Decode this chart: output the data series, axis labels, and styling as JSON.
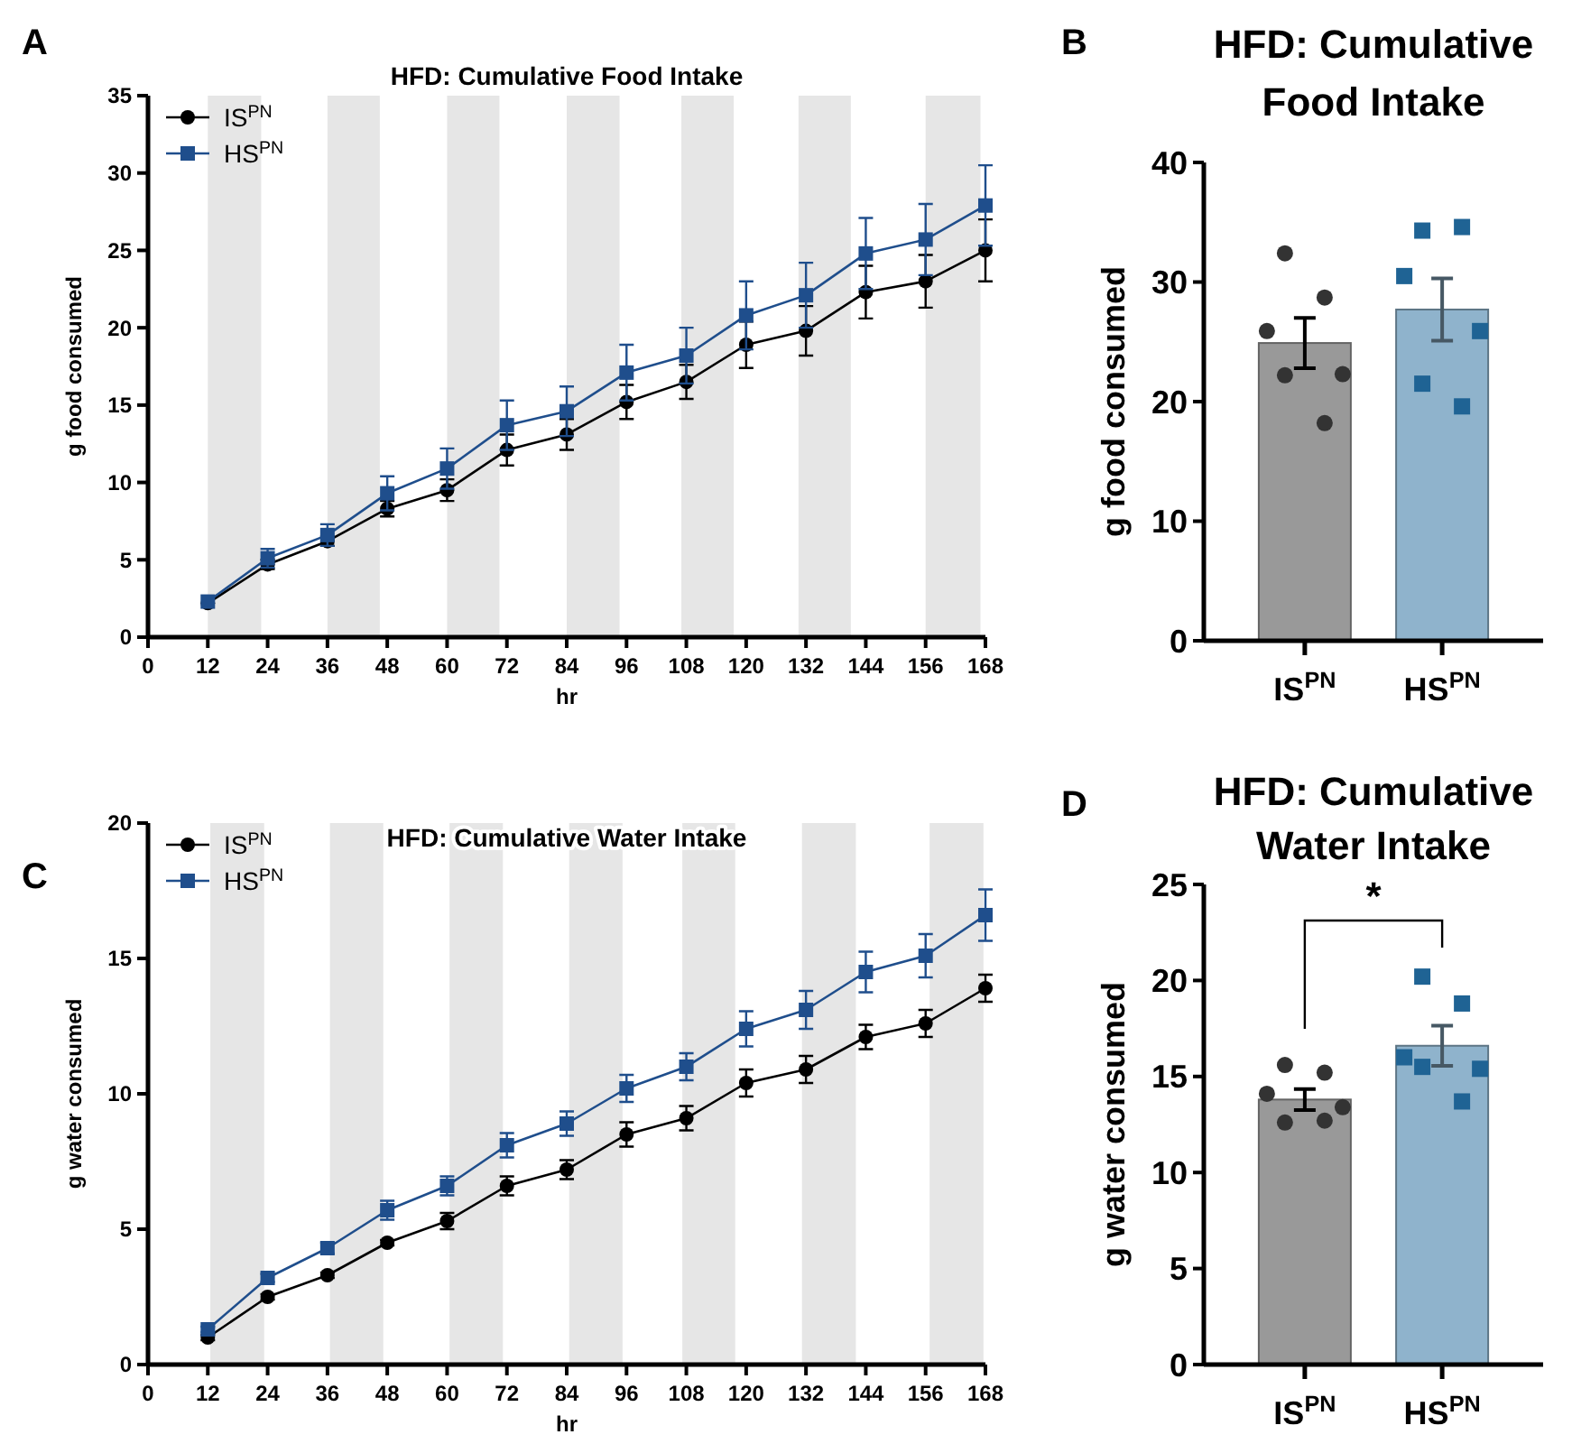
{
  "chart_data": [
    {
      "type": "line",
      "title": "HFD: Cumulative Food Intake",
      "xlabel": "hr",
      "ylabel": "g food consumed",
      "annotations": [
        "A"
      ],
      "x": [
        12,
        24,
        36,
        48,
        60,
        72,
        84,
        96,
        108,
        120,
        132,
        144,
        156,
        168
      ],
      "xlim": [
        0,
        168
      ],
      "xticks": [
        0,
        12,
        24,
        36,
        48,
        60,
        72,
        84,
        96,
        108,
        120,
        132,
        144,
        156,
        168
      ],
      "ylim": [
        0,
        35
      ],
      "yticks": [
        0,
        5,
        10,
        15,
        20,
        25,
        30,
        35
      ],
      "legend": "top left",
      "bands": [
        {
          "axis": "x",
          "from": 12,
          "to": 22.7,
          "color": "#e6e6e6"
        },
        {
          "axis": "x",
          "from": 36,
          "to": 46.5,
          "color": "#e6e6e6"
        },
        {
          "axis": "x",
          "from": 60,
          "to": 70.5,
          "color": "#e6e6e6"
        },
        {
          "axis": "x",
          "from": 84,
          "to": 94.6,
          "color": "#e6e6e6"
        },
        {
          "axis": "x",
          "from": 107,
          "to": 117.5,
          "color": "#e6e6e6"
        },
        {
          "axis": "x",
          "from": 130.5,
          "to": 141,
          "color": "#e6e6e6"
        },
        {
          "axis": "x",
          "from": 156,
          "to": 167,
          "color": "#e6e6e6"
        }
      ],
      "series": [
        {
          "name": "IS$^{PN}$",
          "color": "#000000",
          "marker": "circle",
          "line_style": "solid",
          "values": [
            2.2,
            4.7,
            6.2,
            8.3,
            9.5,
            12.1,
            13.1,
            15.2,
            16.5,
            18.9,
            19.8,
            22.3,
            23.0,
            25.0
          ],
          "errors": [
            null,
            0.3,
            0.3,
            0.5,
            0.7,
            1.0,
            1.0,
            1.1,
            1.1,
            1.5,
            1.6,
            1.7,
            1.7,
            2.0
          ]
        },
        {
          "name": "HS$^{PN}$",
          "color": "#1f4e8c",
          "marker": "square",
          "line_style": "solid",
          "values": [
            2.3,
            5.1,
            6.6,
            9.3,
            10.9,
            13.7,
            14.6,
            17.1,
            18.2,
            20.8,
            22.1,
            24.8,
            25.7,
            27.9
          ],
          "errors": [
            null,
            0.6,
            0.7,
            1.1,
            1.3,
            1.6,
            1.6,
            1.8,
            1.8,
            2.2,
            2.1,
            2.3,
            2.3,
            2.6
          ]
        }
      ]
    },
    {
      "type": "bar",
      "title": "HFD: Cumulative Food Intake",
      "ylabel": "g food consumed",
      "annotations": [
        "B"
      ],
      "categories": [
        "IS$^{PN}$",
        "HS$^{PN}$"
      ],
      "ylim": [
        0,
        40
      ],
      "yticks": [
        0,
        10,
        20,
        30,
        40
      ],
      "series": [
        {
          "type": "bar",
          "values": [
            24.9,
            27.7
          ],
          "colors": [
            "#999999",
            "#8fb3cc"
          ],
          "errors": [
            2.1,
            2.6
          ]
        },
        {
          "type": "scatter",
          "marker": "circle",
          "color": "#333333",
          "x": [
            "IS$^{PN}$",
            "IS$^{PN}$",
            "IS$^{PN}$",
            "IS$^{PN}$",
            "IS$^{PN}$",
            "IS$^{PN}$"
          ],
          "values": [
            32.4,
            28.7,
            25.9,
            22.3,
            22.2,
            18.2
          ]
        },
        {
          "type": "scatter",
          "marker": "square",
          "color": "#1f6394",
          "x": [
            "HS$^{PN}$",
            "HS$^{PN}$",
            "HS$^{PN}$",
            "HS$^{PN}$",
            "HS$^{PN}$",
            "HS$^{PN}$"
          ],
          "values": [
            34.3,
            34.6,
            30.5,
            25.9,
            21.5,
            19.6
          ]
        }
      ]
    },
    {
      "type": "line",
      "title": "HFD: Cumulative Water Intake",
      "xlabel": "hr",
      "ylabel": "g water consumed",
      "annotations": [
        "C"
      ],
      "x": [
        12,
        24,
        36,
        48,
        60,
        72,
        84,
        96,
        108,
        120,
        132,
        144,
        156,
        168
      ],
      "xlim": [
        0,
        168
      ],
      "xticks": [
        0,
        12,
        24,
        36,
        48,
        60,
        72,
        84,
        96,
        108,
        120,
        132,
        144,
        156,
        168
      ],
      "ylim": [
        0,
        20
      ],
      "yticks": [
        0,
        5,
        10,
        15,
        20
      ],
      "legend": "top left",
      "bands": [
        {
          "axis": "x",
          "from": 12.5,
          "to": 23.3,
          "color": "#e6e6e6"
        },
        {
          "axis": "x",
          "from": 36.5,
          "to": 47.2,
          "color": "#e6e6e6"
        },
        {
          "axis": "x",
          "from": 60.5,
          "to": 71.2,
          "color": "#e6e6e6"
        },
        {
          "axis": "x",
          "from": 84.5,
          "to": 95.2,
          "color": "#e6e6e6"
        },
        {
          "axis": "x",
          "from": 107.2,
          "to": 117.8,
          "color": "#e6e6e6"
        },
        {
          "axis": "x",
          "from": 131.2,
          "to": 142,
          "color": "#e6e6e6"
        },
        {
          "axis": "x",
          "from": 156.8,
          "to": 167.6,
          "color": "#e6e6e6"
        }
      ],
      "series": [
        {
          "name": "IS$^{PN}$",
          "color": "#000000",
          "marker": "circle",
          "line_style": "solid",
          "values": [
            1.0,
            2.5,
            3.3,
            4.5,
            5.3,
            6.6,
            7.2,
            8.5,
            9.1,
            10.4,
            10.9,
            12.1,
            12.6,
            13.9
          ],
          "errors": [
            0.1,
            0.1,
            0.1,
            0.1,
            0.3,
            0.35,
            0.35,
            0.45,
            0.45,
            0.5,
            0.5,
            0.45,
            0.5,
            0.5
          ]
        },
        {
          "name": "HS$^{PN}$",
          "color": "#1f4e8c",
          "marker": "square",
          "line_style": "solid",
          "values": [
            1.3,
            3.2,
            4.3,
            5.7,
            6.6,
            8.1,
            8.9,
            10.2,
            11.0,
            12.4,
            13.1,
            14.5,
            15.1,
            16.6
          ],
          "errors": [
            0.1,
            0.15,
            0.2,
            0.35,
            0.35,
            0.45,
            0.45,
            0.5,
            0.5,
            0.65,
            0.7,
            0.75,
            0.8,
            0.95
          ]
        }
      ]
    },
    {
      "type": "bar",
      "title": "HFD: Cumulative Water Intake",
      "ylabel": "g water consumed",
      "annotations": [
        "D",
        "*"
      ],
      "categories": [
        "IS$^{PN}$",
        "HS$^{PN}$"
      ],
      "ylim": [
        0,
        25
      ],
      "yticks": [
        0,
        5,
        10,
        15,
        20,
        25
      ],
      "series": [
        {
          "type": "bar",
          "values": [
            13.8,
            16.6
          ],
          "colors": [
            "#999999",
            "#8fb3cc"
          ],
          "errors": [
            0.55,
            1.05
          ]
        },
        {
          "type": "scatter",
          "marker": "circle",
          "color": "#333333",
          "x": [
            "IS$^{PN}$",
            "IS$^{PN}$",
            "IS$^{PN}$",
            "IS$^{PN}$",
            "IS$^{PN}$",
            "IS$^{PN}$"
          ],
          "values": [
            15.6,
            15.2,
            14.1,
            13.4,
            12.6,
            12.7
          ]
        },
        {
          "type": "scatter",
          "marker": "square",
          "color": "#1f6394",
          "x": [
            "HS$^{PN}$",
            "HS$^{PN}$",
            "HS$^{PN}$",
            "HS$^{PN}$",
            "HS$^{PN}$",
            "HS$^{PN}$"
          ],
          "values": [
            20.2,
            18.8,
            16.0,
            15.4,
            15.5,
            13.7
          ]
        }
      ]
    }
  ]
}
